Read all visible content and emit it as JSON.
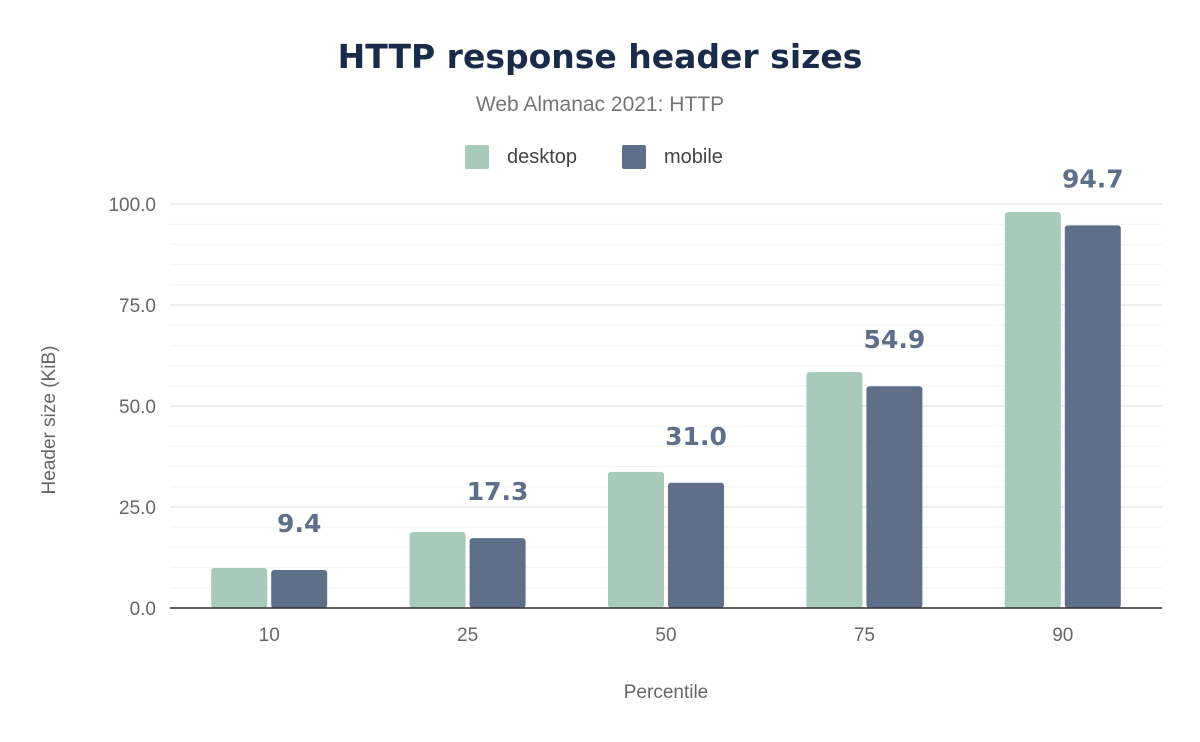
{
  "chart_data": {
    "type": "bar",
    "title": "HTTP response header sizes",
    "subtitle": "Web Almanac 2021: HTTP",
    "xlabel": "Percentile",
    "ylabel": "Header size (KiB)",
    "categories": [
      "10",
      "25",
      "50",
      "75",
      "90"
    ],
    "ylim": [
      0,
      100
    ],
    "yticks": [
      "0.0",
      "25.0",
      "50.0",
      "75.0",
      "100.0"
    ],
    "grid": true,
    "legend_position": "top",
    "series": [
      {
        "name": "desktop",
        "color": "#a8cabb",
        "values": [
          9.9,
          18.8,
          33.7,
          58.4,
          98.0
        ]
      },
      {
        "name": "mobile",
        "color": "#5f6f8a",
        "values": [
          9.4,
          17.3,
          31.0,
          54.9,
          94.7
        ],
        "data_labels": [
          "9.4",
          "17.3",
          "31.0",
          "54.9",
          "94.7"
        ]
      }
    ]
  }
}
